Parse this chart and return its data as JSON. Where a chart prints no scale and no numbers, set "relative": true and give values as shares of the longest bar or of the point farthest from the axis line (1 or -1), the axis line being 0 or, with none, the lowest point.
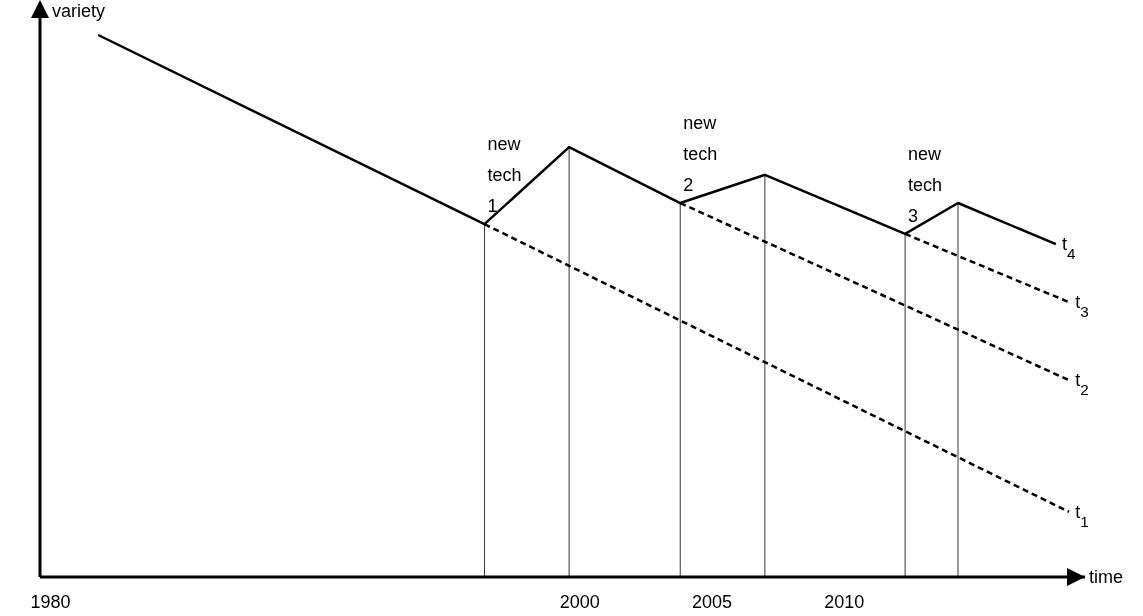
{
  "chart_data": {
    "type": "line",
    "relative": true,
    "xlabel": "time",
    "ylabel": "variety",
    "xlim": [
      1979.6,
      2019.1
    ],
    "xticks": [
      1980,
      2000,
      2005,
      2010
    ],
    "grid": false,
    "legend": false,
    "marker": "none",
    "series": [
      {
        "name": "t$_{4}$",
        "color": "#000000",
        "line_style": "solid",
        "x": [
          1981.8,
          1996.4,
          1999.6,
          2003.8,
          2007.0,
          2012.3,
          2014.3,
          2018.0
        ],
        "values": [
          1.0,
          0.651,
          0.793,
          0.69,
          0.742,
          0.633,
          0.69,
          0.614
        ]
      },
      {
        "name": "t$_{3}$",
        "color": "#000000",
        "line_style": "dashed",
        "x": [
          2012.3,
          2018.5
        ],
        "values": [
          0.633,
          0.507
        ]
      },
      {
        "name": "t$_{2}$",
        "color": "#000000",
        "line_style": "dashed",
        "x": [
          2003.8,
          2018.5
        ],
        "values": [
          0.69,
          0.363
        ]
      },
      {
        "name": "t$_{1}$",
        "color": "#000000",
        "line_style": "dashed",
        "x": [
          1996.4,
          2018.5
        ],
        "values": [
          0.651,
          0.12
        ]
      }
    ],
    "ref_lines": [
      {
        "axis": "x",
        "value": 1996.4,
        "color": "#000000"
      },
      {
        "axis": "x",
        "value": 1999.6,
        "color": "#000000"
      },
      {
        "axis": "x",
        "value": 2003.8,
        "color": "#000000"
      },
      {
        "axis": "x",
        "value": 2007.0,
        "color": "#000000"
      },
      {
        "axis": "x",
        "value": 2012.3,
        "color": "#000000"
      },
      {
        "axis": "x",
        "value": 2014.3,
        "color": "#000000"
      }
    ],
    "annotations": [
      {
        "text": "new tech 1",
        "x": 1996.4,
        "y": 0.651
      },
      {
        "text": "new tech 2",
        "x": 2003.8,
        "y": 0.69
      },
      {
        "text": "new tech 3",
        "x": 2012.3,
        "y": 0.633
      }
    ]
  }
}
